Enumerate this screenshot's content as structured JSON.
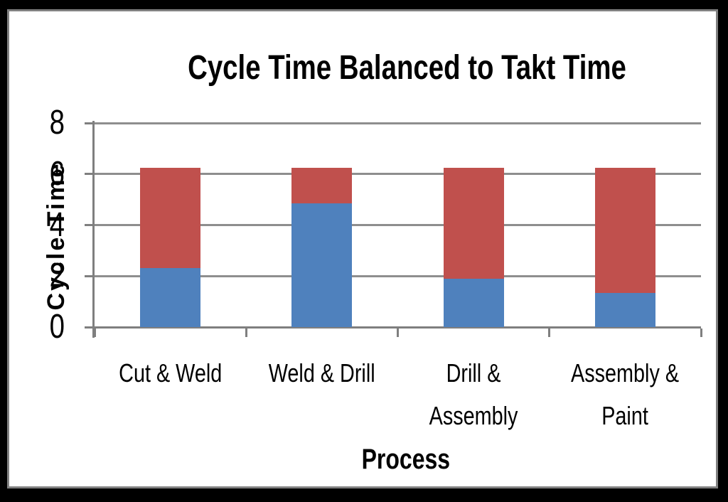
{
  "window": {
    "background_color": "#000000",
    "frame_border_color": "#808080",
    "frame_background": "#ffffff"
  },
  "chart_data": {
    "type": "bar",
    "stacked": true,
    "title": "Cycle Time Balanced to Takt Time",
    "xlabel": "Process",
    "ylabel": "Cycle Time",
    "categories": [
      "Cut & Weld",
      "Weld & Drill",
      "Drill &\nAssembly",
      "Assembly &\nPaint"
    ],
    "series": [
      {
        "name": "blue",
        "color": "#4F81BD",
        "values": [
          2.3,
          4.85,
          1.9,
          1.35
        ]
      },
      {
        "name": "red",
        "color": "#C0504D",
        "values": [
          3.95,
          1.4,
          4.35,
          4.9
        ]
      }
    ],
    "bar_total": 6.25,
    "ylim": [
      0,
      8
    ],
    "yticks": [
      0,
      2,
      4,
      6,
      8
    ],
    "grid": true,
    "legend": "none",
    "gridline_color": "#8e8e8e",
    "axis_color": "#7f7f7f"
  }
}
